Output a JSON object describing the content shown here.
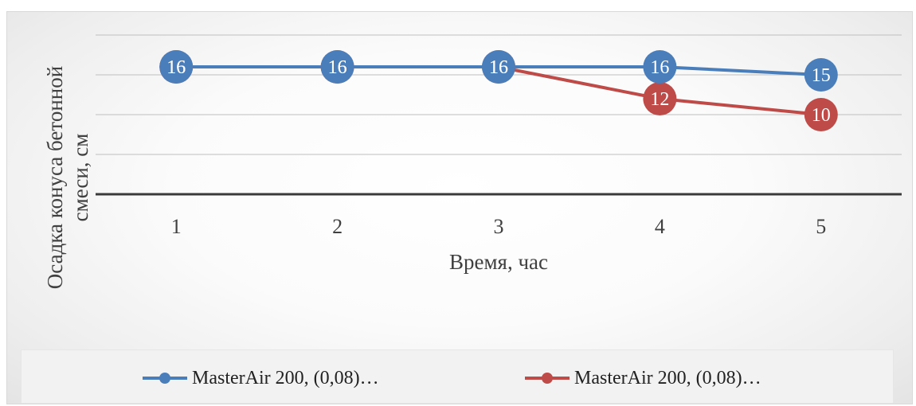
{
  "chart_data": {
    "type": "line",
    "categories": [
      "1",
      "2",
      "3",
      "4",
      "5"
    ],
    "xlabel": "Время, час",
    "ylabel": [
      "Осадка конуса бетонной",
      "смеси, см"
    ],
    "ylim": [
      0,
      20
    ],
    "grid": true,
    "legend_position": "bottom",
    "series": [
      {
        "name": "MasterAir 200, (0,08)…",
        "color": "#4a7ebb",
        "values": [
          16,
          16,
          16,
          16,
          15
        ]
      },
      {
        "name": "MasterAir 200, (0,08)…",
        "color": "#be4b48",
        "values": [
          16,
          16,
          16,
          12,
          10
        ]
      }
    ]
  }
}
